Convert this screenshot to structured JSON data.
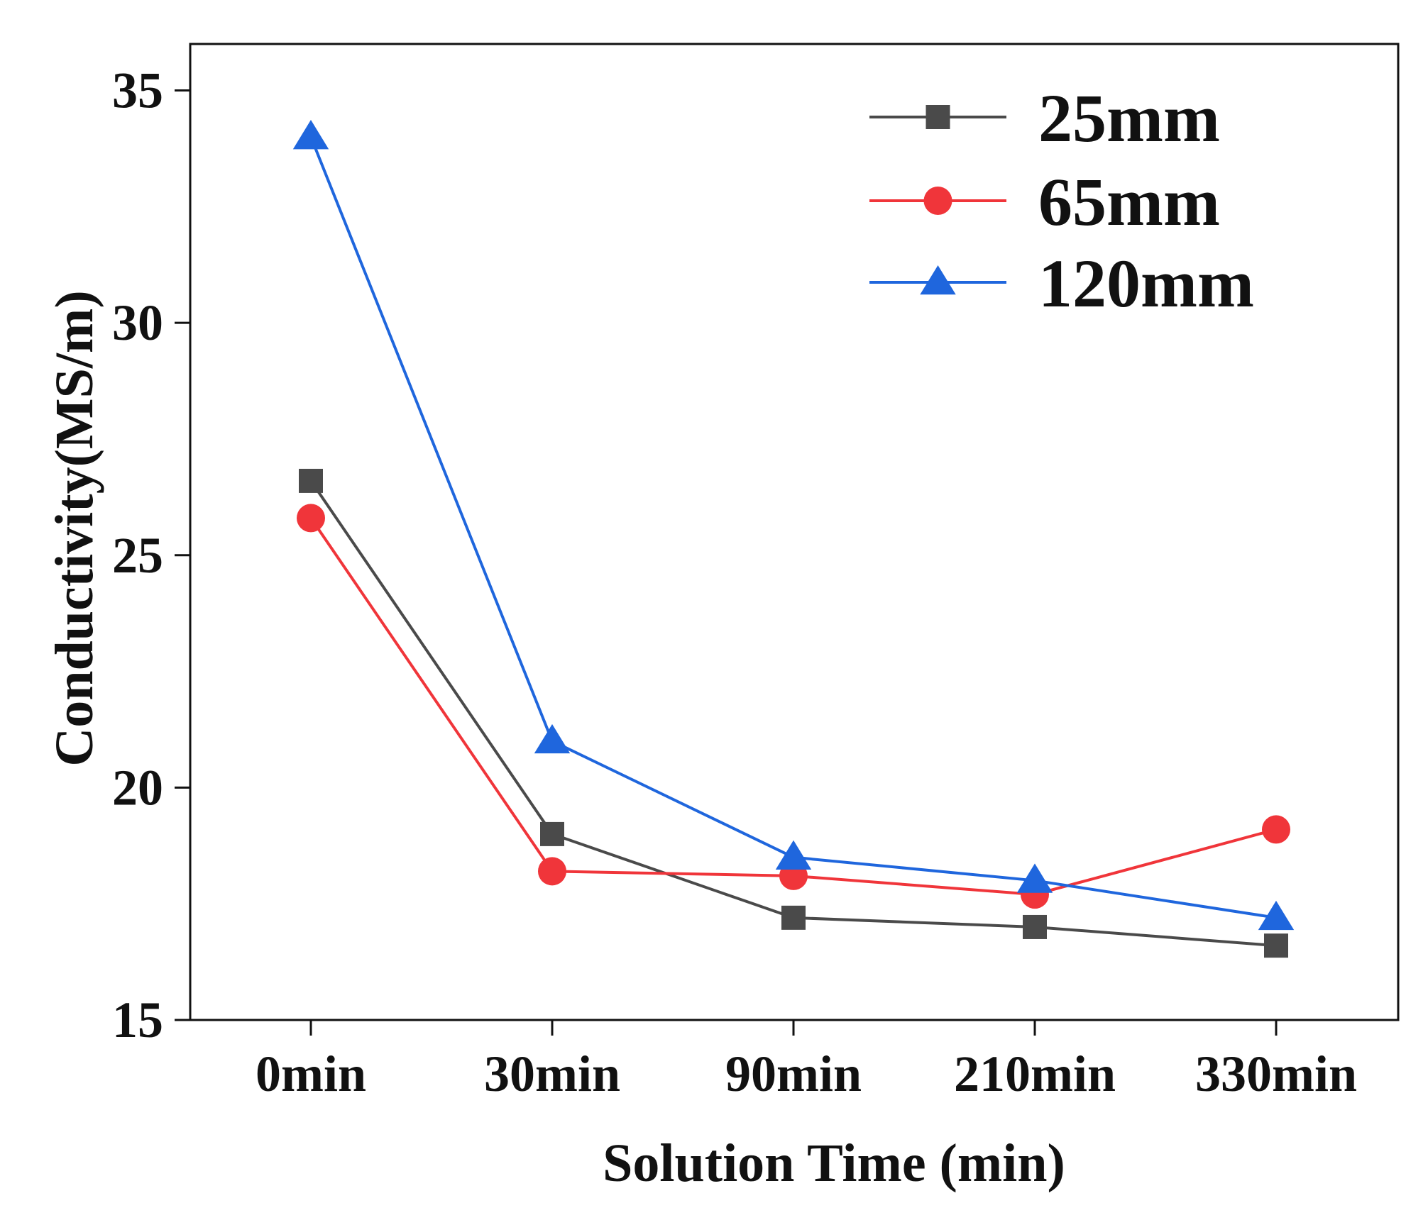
{
  "chart_data": {
    "type": "line",
    "title": "",
    "xlabel": "Solution Time (min)",
    "ylabel": "Conductivity(MS/m)",
    "categories": [
      "0min",
      "30min",
      "90min",
      "210min",
      "330min"
    ],
    "ylim": [
      15,
      36
    ],
    "yticks": [
      15,
      20,
      25,
      30,
      35
    ],
    "grid": false,
    "legend_position": "top-right",
    "series": [
      {
        "name": "25mm",
        "color": "#4a4a4a",
        "marker": "square",
        "values": [
          26.6,
          19.0,
          17.2,
          17.0,
          16.6
        ]
      },
      {
        "name": "65mm",
        "color": "#f0353a",
        "marker": "circle",
        "values": [
          25.8,
          18.2,
          18.1,
          17.7,
          19.1
        ]
      },
      {
        "name": "120mm",
        "color": "#1f66dd",
        "marker": "triangle",
        "values": [
          34.0,
          21.0,
          18.5,
          18.0,
          17.2
        ]
      }
    ]
  }
}
